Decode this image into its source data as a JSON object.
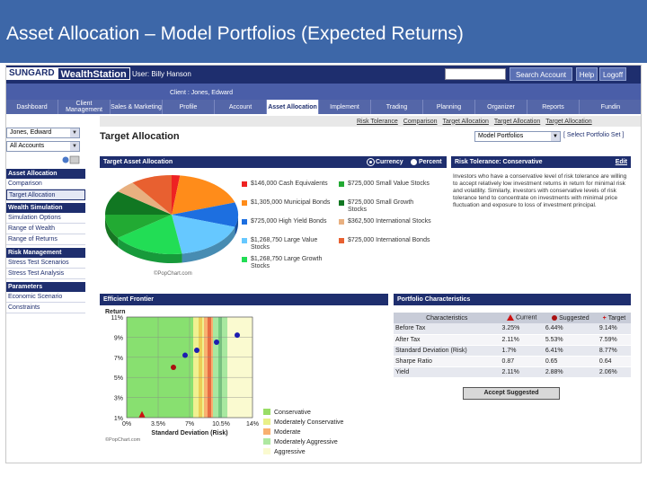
{
  "slide": {
    "title": "Asset Allocation – Model Portfolios (Expected Returns)"
  },
  "app": {
    "logo_a": "SUNGARD",
    "logo_b": "WealthStation",
    "user_label": "User: Billy Hanson",
    "search_button": "Search Account",
    "help_button": "Help",
    "logoff_button": "Logoff",
    "client_label": "Client : Jones, Edward",
    "tabs": [
      "Dashboard",
      "Client Management",
      "Sales & Marketing",
      "Profile",
      "Account",
      "Asset Allocation",
      "Implement",
      "Trading",
      "Planning",
      "Organizer",
      "Reports",
      "Fundin"
    ],
    "active_tab": 5,
    "breadcrumbs": [
      "Risk Tolerance",
      "Comparison",
      "Target Allocation",
      "Target Allocation",
      "Target Allocation"
    ]
  },
  "sidebar": {
    "client_select": "Jones, Edward",
    "accounts_select": "All Accounts",
    "sections": [
      {
        "title": "Asset Allocation",
        "items": [
          "Comparison",
          "Target Allocation"
        ]
      },
      {
        "title": "Wealth Simulation",
        "items": [
          "Simulation Options",
          "Range of Wealth",
          "Range of Returns"
        ]
      },
      {
        "title": "Risk Management",
        "items": [
          "Stress Test Scenarios",
          "Stress Test Analysis"
        ]
      },
      {
        "title": "Parameters",
        "items": [
          "Economic Scenario",
          "Constraints"
        ]
      }
    ],
    "active_item": "Target Allocation"
  },
  "main": {
    "page_title": "Target Allocation",
    "portfolio_select": "Model Portfolios",
    "select_set_link": "[ Select Portfolio Set ]",
    "target_panel": {
      "title": "Target Asset Allocation",
      "radio_currency": "Currency",
      "radio_percent": "Percent",
      "credit": "©PopChart.com"
    },
    "risk_panel": {
      "title": "Risk Tolerance: Conservative",
      "edit": "Edit",
      "text": "Investors who have a conservative level of risk tolerance are willing to accept relatively low investment returns in return for minimal risk and volatility. Similarly, investors with conservative levels of risk tolerance tend to concentrate on investments with minimal price fluctuation and exposure to loss of investment principal."
    },
    "frontier_panel": {
      "title": "Efficient Frontier",
      "credit": "©PopChart.com"
    },
    "portfolio_panel": {
      "title": "Portfolio Characteristics",
      "headers": [
        "Characteristics",
        "Current",
        "Suggested",
        "Target"
      ],
      "rows": [
        [
          "Before Tax",
          "3.25%",
          "6.44%",
          "9.14%"
        ],
        [
          "After Tax",
          "2.11%",
          "5.53%",
          "7.59%"
        ],
        [
          "Standard Deviation (Risk)",
          "1.7%",
          "6.41%",
          "8.77%"
        ],
        [
          "Sharpe Ratio",
          "0.87",
          "0.65",
          "0.64"
        ],
        [
          "Yield",
          "2.11%",
          "2.88%",
          "2.06%"
        ]
      ],
      "accept_button": "Accept Suggested"
    }
  },
  "colors": {
    "nav": "#1e2e6e",
    "header": "#3d67a8"
  },
  "chart_data": [
    {
      "type": "pie",
      "categories": [
        "$146,000 Cash Equivalents",
        "$1,305,000 Municipal Bonds",
        "$725,000 High Yield Bonds",
        "$1,268,750 Large Value Stocks",
        "$1,268,750 Large Growth Stocks",
        "$725,000 Small Value Stocks",
        "$725,000 Small Growth Stocks",
        "$362,500 International Stocks",
        "$725,000 International Bonds"
      ],
      "values": [
        146000,
        1305000,
        725000,
        1268750,
        1268750,
        725000,
        725000,
        362500,
        725000
      ],
      "colors": [
        "#ee2222",
        "#ff8c1a",
        "#1d6fe0",
        "#66c8ff",
        "#22dd55",
        "#22aa33",
        "#117722",
        "#e8b080",
        "#e86030"
      ]
    },
    {
      "type": "scatter",
      "xlabel": "Standard Deviation (Risk)",
      "ylabel": "Return",
      "xlim": [
        0,
        14
      ],
      "ylim": [
        1,
        11
      ],
      "x_ticks": [
        "0%",
        "3.5%",
        "7%",
        "10.5%",
        "14%"
      ],
      "y_ticks": [
        "1%",
        "3%",
        "5%",
        "7%",
        "9%",
        "11%"
      ],
      "series": [
        {
          "name": "Current",
          "x": [
            1.7
          ],
          "y": [
            1.3
          ],
          "marker": "triangle",
          "color": "#cc1111"
        },
        {
          "name": "",
          "x": [
            5.2
          ],
          "y": [
            6.0
          ],
          "marker": "circle",
          "color": "#aa1111"
        },
        {
          "name": "",
          "x": [
            6.5
          ],
          "y": [
            7.2
          ],
          "marker": "circle",
          "color": "#1d1db0"
        },
        {
          "name": "",
          "x": [
            7.8
          ],
          "y": [
            7.7
          ],
          "marker": "circle",
          "color": "#1d1db0"
        },
        {
          "name": "",
          "x": [
            10.0
          ],
          "y": [
            8.5
          ],
          "marker": "circle",
          "color": "#1d1db0"
        },
        {
          "name": "",
          "x": [
            12.3
          ],
          "y": [
            9.2
          ],
          "marker": "circle",
          "color": "#1d1db0"
        }
      ],
      "bands": [
        {
          "name": "Conservative",
          "color": "#99dd66"
        },
        {
          "name": "Moderately Conservative",
          "color": "#e8f088"
        },
        {
          "name": "Moderate",
          "color": "#f8b070"
        },
        {
          "name": "Moderately Aggressive",
          "color": "#aee8a0"
        },
        {
          "name": "Aggressive",
          "color": "#fafad0"
        }
      ]
    }
  ]
}
